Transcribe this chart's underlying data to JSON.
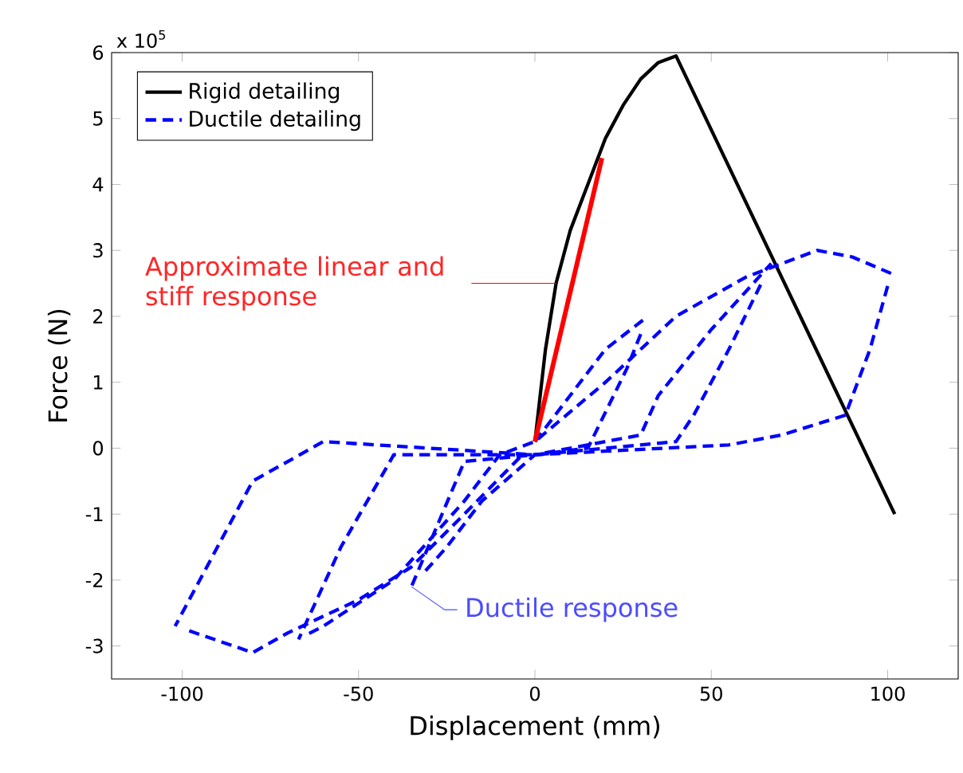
{
  "chart_data": {
    "type": "line",
    "xlabel": "Displacement (mm)",
    "ylabel": "Force (N)",
    "xlim": [
      -120,
      120
    ],
    "ylim": [
      -3.5,
      6
    ],
    "xticks": [
      -100,
      -50,
      0,
      50,
      100
    ],
    "yticks": [
      -3,
      -2,
      -1,
      0,
      1,
      2,
      3,
      4,
      5,
      6
    ],
    "legend": "top left",
    "grid": false,
    "series": [
      {
        "name": "Rigid detailing",
        "color": "#000000",
        "line_style": "solid",
        "x": [
          0,
          3,
          6,
          10,
          15,
          20,
          25,
          30,
          35,
          40,
          102
        ],
        "values": [
          0.1,
          1.5,
          2.5,
          3.3,
          4.0,
          4.7,
          5.2,
          5.6,
          5.85,
          5.95,
          -1
        ]
      },
      {
        "name": "Ductile detailing",
        "color": "#0000ff",
        "line_style": "dashed",
        "x": [
          0,
          10,
          20,
          32
        ],
        "values": [
          0.1,
          0.8,
          1.5,
          2.0
        ]
      },
      {
        "color": "#0000ff",
        "line_style": "dashed",
        "x": [
          30,
          26,
          15,
          0,
          -20,
          -35
        ],
        "values": [
          1.73,
          1.2,
          0,
          -0.1,
          -0.2,
          -2.1
        ]
      },
      {
        "color": "#0000ff",
        "line_style": "dashed",
        "x": [
          -31,
          -25,
          -15,
          0,
          30,
          35,
          50,
          67
        ],
        "values": [
          -1.86,
          -1.5,
          -0.8,
          -0.1,
          0.2,
          0.8,
          1.8,
          2.8
        ]
      },
      {
        "color": "#0000ff",
        "line_style": "dashed",
        "x": [
          64,
          55,
          45,
          40,
          0,
          -40,
          -55,
          -67
        ],
        "values": [
          2.48,
          1.5,
          0.5,
          0.1,
          -0.1,
          -0.1,
          -1.5,
          -2.9
        ]
      },
      {
        "color": "#0000ff",
        "line_style": "dashed",
        "x": [
          -64,
          -60,
          -40,
          -20,
          -10,
          0,
          20,
          40,
          60,
          80,
          90,
          101
        ],
        "values": [
          -2.81,
          -2.7,
          -2.0,
          -0.8,
          -0.1,
          0.1,
          1.0,
          2.0,
          2.6,
          3.0,
          2.9,
          2.65
        ]
      },
      {
        "color": "#0000ff",
        "line_style": "dashed",
        "x": [
          100,
          95,
          88,
          70,
          55,
          0,
          -60,
          -80,
          -102
        ],
        "values": [
          2.46,
          1.5,
          0.5,
          0.2,
          0.05,
          -0.1,
          0.1,
          -0.5,
          -2.7
        ]
      },
      {
        "color": "#0000ff",
        "line_style": "dashed",
        "x": [
          -98,
          -80,
          -70,
          -50,
          -35,
          -20,
          -3
        ],
        "values": [
          -2.77,
          -3.1,
          -2.8,
          -2.3,
          -1.8,
          -1.0,
          -0.07
        ]
      },
      {
        "color": "#ff0000",
        "line_style": "solid",
        "x": [
          0,
          19
        ],
        "values": [
          0.1,
          4.4
        ]
      }
    ],
    "annotations": [
      "x 10$^{5}$",
      "Approximate linear and stiff response",
      {
        "text": "Ductile response",
        "x": -35,
        "y": -2.1
      }
    ]
  }
}
